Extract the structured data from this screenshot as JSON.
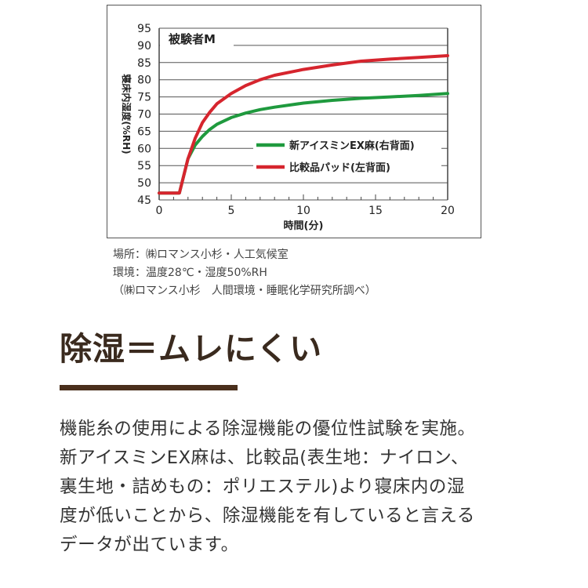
{
  "chart_data": {
    "type": "line",
    "title": "被験者M",
    "xlabel": "時間(分)",
    "ylabel": "寝床内湿度(%RH)",
    "xlim": [
      0,
      20
    ],
    "ylim": [
      45,
      95
    ],
    "x_ticks": [
      0,
      5,
      10,
      15,
      20
    ],
    "y_ticks": [
      45,
      50,
      55,
      60,
      65,
      70,
      75,
      80,
      85,
      90,
      95
    ],
    "grid": "horizontal",
    "legend_position": "center-right",
    "series": [
      {
        "name": "新アイスミンEX麻(右背面)",
        "color": "#1f9a3e",
        "x": [
          0,
          1.4,
          1.7,
          2.0,
          2.5,
          3.0,
          3.5,
          4.0,
          5.0,
          6.0,
          7.0,
          8.0,
          10.0,
          12.0,
          14.0,
          16.0,
          18.0,
          20.0
        ],
        "y": [
          47,
          47,
          52,
          57,
          61,
          63.5,
          65.5,
          67,
          69,
          70.3,
          71.3,
          72,
          73.2,
          74,
          74.6,
          75,
          75.4,
          76
        ]
      },
      {
        "name": "比較品パッド(左背面)",
        "color": "#d6252e",
        "x": [
          0,
          1.4,
          1.7,
          2.0,
          2.5,
          3.0,
          3.5,
          4.0,
          5.0,
          6.0,
          7.0,
          8.0,
          10.0,
          12.0,
          14.0,
          16.0,
          18.0,
          20.0
        ],
        "y": [
          47,
          47,
          52,
          57,
          63,
          67.5,
          70.5,
          73,
          76,
          78.3,
          80,
          81.3,
          83,
          84.3,
          85.4,
          86,
          86.5,
          87
        ]
      }
    ]
  },
  "notes": [
    "場所：㈱ロマンス小杉・人工気候室",
    "環境：温度28℃・湿度50%RH",
    "（㈱ロマンス小杉　人間環境・睡眠化学研究所調べ）"
  ],
  "headline": "除湿＝ムレにくい",
  "accent_color": "#4a2f1c",
  "body_lines": [
    "機能糸の使用による除湿機能の優位性試験を実施。",
    "新アイスミンEX麻は、比較品(表生地：ナイロン、",
    "裏生地・詰めもの：ポリエステル)より寝床内の湿",
    "度が低いことから、除湿機能を有していると言える",
    "データが出ています。"
  ]
}
